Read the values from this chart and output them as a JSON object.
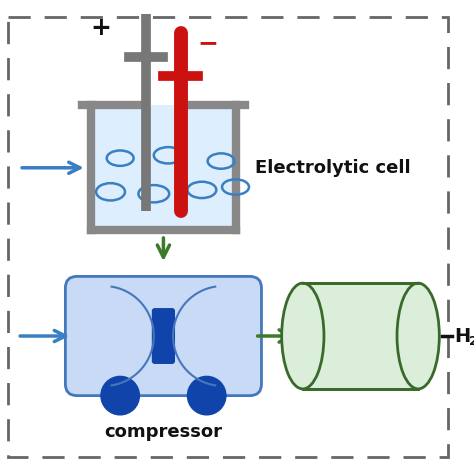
{
  "bg_color": "#ffffff",
  "dash_border_color": "#666666",
  "blue_arrow_color": "#3a7fc1",
  "green_arrow_color": "#3a7a2a",
  "electrode_gray": "#777777",
  "electrode_red": "#cc1111",
  "cell_gray": "#888888",
  "cell_fill": "#ddeeff",
  "bubble_color": "#3a7fc1",
  "compressor_fill_light": "#c8daf5",
  "compressor_fill_dark": "#7aaad8",
  "compressor_border": "#4477bb",
  "compressor_window": "#1144aa",
  "wheel_color": "#1144aa",
  "tank_fill": "#daeeda",
  "tank_border": "#3a6a2a",
  "title_color": "#111111",
  "plus_color": "#111111",
  "minus_color": "#cc1111",
  "label_electrolytic": "Electrolytic cell",
  "label_compressor": "compressor",
  "figsize": [
    4.74,
    4.74
  ],
  "dpi": 100
}
